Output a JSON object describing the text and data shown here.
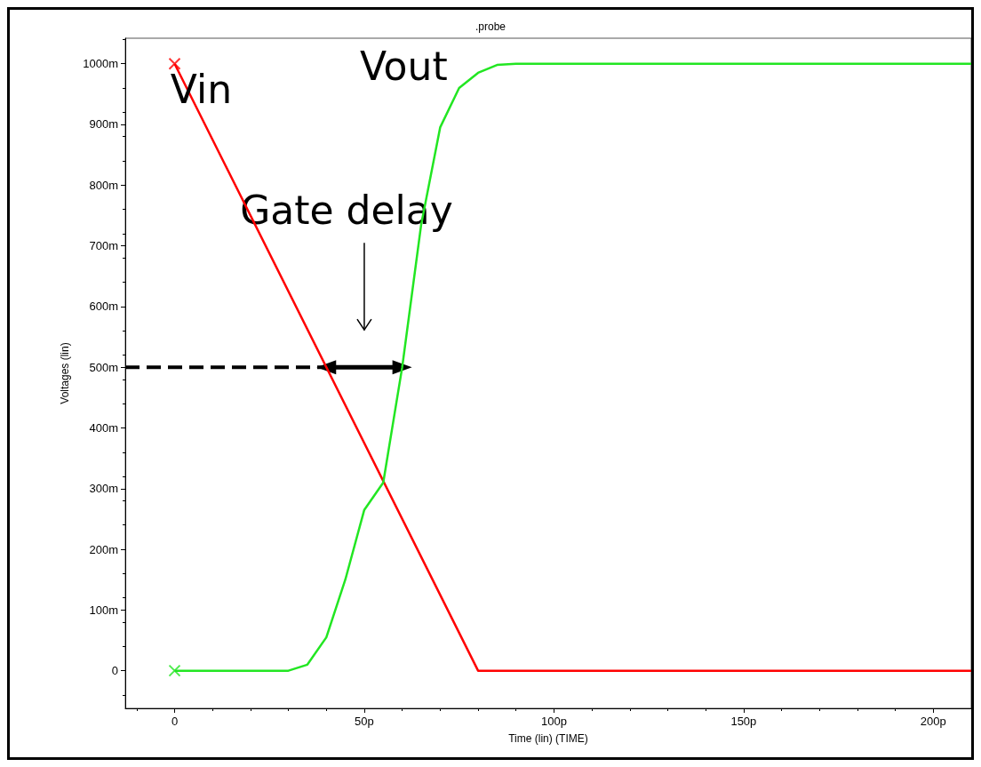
{
  "chart_data": {
    "type": "line",
    "title": ".probe",
    "xlabel": "Time (lin) (TIME)",
    "ylabel": "Voltages (lin)",
    "xlim": [
      -13,
      210
    ],
    "ylim": [
      -62,
      1042
    ],
    "xticks": [
      {
        "value": 0,
        "label": "0"
      },
      {
        "value": 50,
        "label": "50p"
      },
      {
        "value": 100,
        "label": "100p"
      },
      {
        "value": 150,
        "label": "150p"
      },
      {
        "value": 200,
        "label": "200p"
      }
    ],
    "yticks": [
      {
        "value": 0,
        "label": "0"
      },
      {
        "value": 100,
        "label": "100m"
      },
      {
        "value": 200,
        "label": "200m"
      },
      {
        "value": 300,
        "label": "300m"
      },
      {
        "value": 400,
        "label": "400m"
      },
      {
        "value": 500,
        "label": "500m"
      },
      {
        "value": 600,
        "label": "600m"
      },
      {
        "value": 700,
        "label": "700m"
      },
      {
        "value": 800,
        "label": "800m"
      },
      {
        "value": 900,
        "label": "900m"
      },
      {
        "value": 1000,
        "label": "1000m"
      }
    ],
    "grid": false,
    "legend": false,
    "annotations": [
      "Gate delay"
    ],
    "series": [
      {
        "name": "Vin",
        "color": "#ff0000",
        "x": [
          0,
          80,
          210
        ],
        "values": [
          1000,
          0,
          0
        ]
      },
      {
        "name": "Vout",
        "color": "#22e622",
        "x": [
          0,
          30,
          35,
          40,
          45,
          50,
          55,
          60,
          65,
          70,
          75,
          80,
          85,
          90,
          210
        ],
        "values": [
          0,
          0,
          10,
          55,
          150,
          265,
          310,
          500,
          735,
          895,
          960,
          985,
          998,
          1000,
          1000
        ]
      },
      {
        "type": "scatter",
        "color": "#ff0000",
        "marker": "cross",
        "x": [
          0
        ],
        "values": [
          1000
        ]
      },
      {
        "type": "scatter",
        "color": "#22e622",
        "marker": "cross",
        "x": [
          0
        ],
        "values": [
          0
        ]
      },
      {
        "color": "#000000",
        "line_style": "dashed",
        "x": [
          -13,
          40
        ],
        "values": [
          500,
          500
        ]
      },
      {
        "color": "#000000",
        "line_style": "solid",
        "marker": "triangle",
        "x": [
          40,
          60
        ],
        "values": [
          500,
          500
        ]
      }
    ]
  }
}
